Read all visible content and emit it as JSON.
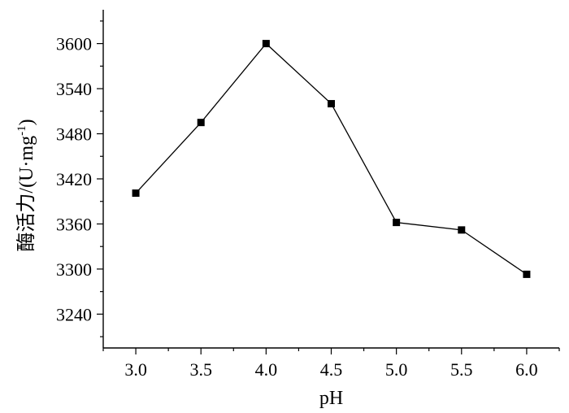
{
  "chart_data": {
    "type": "line",
    "title": "",
    "xlabel": "pH",
    "ylabel": "酶活力/(U·mg",
    "ylabel_sup": "-1",
    "ylabel_close": ")",
    "x": [
      3.0,
      3.5,
      4.0,
      4.5,
      5.0,
      5.5,
      6.0
    ],
    "x_tick_labels": [
      "3.0",
      "3.5",
      "4.0",
      "4.5",
      "5.0",
      "5.5",
      "6.0"
    ],
    "y_tick_values": [
      3240,
      3300,
      3360,
      3420,
      3480,
      3540,
      3600
    ],
    "y_tick_labels": [
      "3240",
      "3300",
      "3360",
      "3420",
      "3480",
      "3540",
      "3600"
    ],
    "xlim": [
      2.75,
      6.25
    ],
    "ylim": [
      3195,
      3645
    ],
    "grid": false,
    "series": [
      {
        "values": [
          3401,
          3495,
          3600,
          3520,
          3362,
          3352,
          3293
        ],
        "marker": "square",
        "color": "#000000"
      }
    ]
  }
}
